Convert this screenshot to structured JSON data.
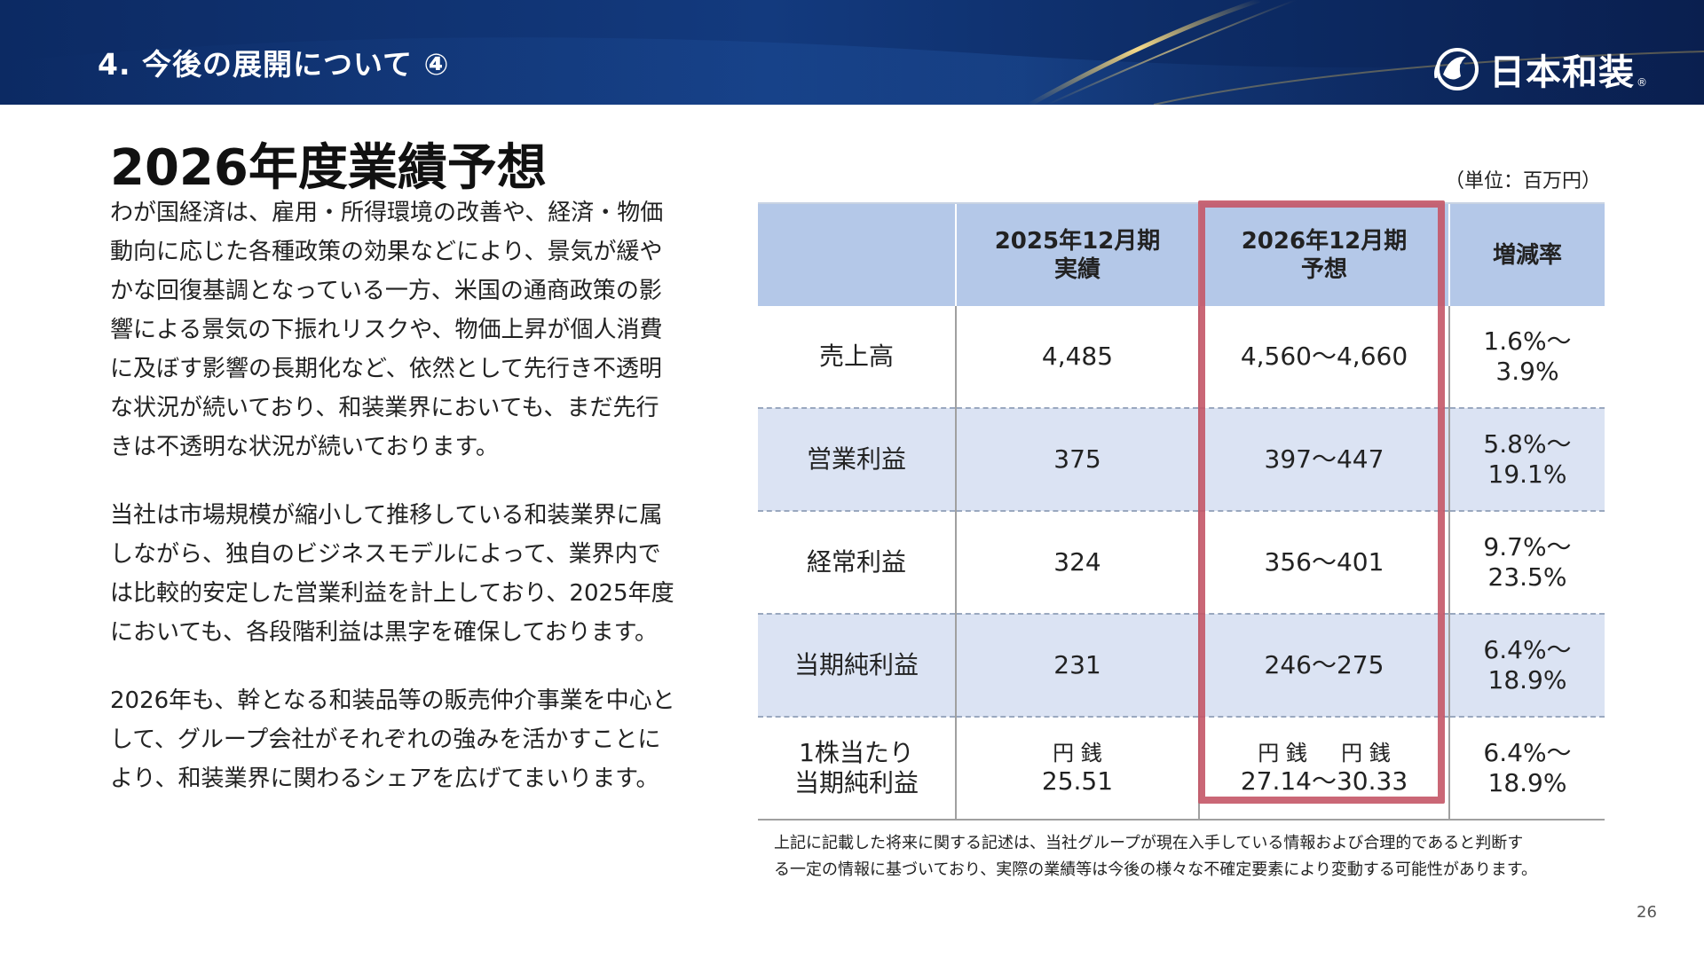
{
  "header": {
    "section_title": "4. 今後の展開について ④",
    "logo_text": "日本和装",
    "logo_reg": "®"
  },
  "main": {
    "heading": "2026年度業績予想",
    "paragraphs": [
      "わが国経済は、雇用・所得環境の改善や、経済・物価動向に応じた各種政策の効果などにより、景気が緩やかな回復基調となっている一方、米国の通商政策の影響による景気の下振れリスクや、物価上昇が個人消費に及ぼす影響の長期化など、依然として先行き不透明な状況が続いており、和装業界においても、まだ先行きは不透明な状況が続いております。",
      "当社は市場規模が縮小して推移している和装業界に属しながら、独自のビジネスモデルによって、業界内では比較的安定した営業利益を計上しており、2025年度においても、各段階利益は黒字を確保しております。",
      "2026年も、幹となる和装品等の販売仲介事業を中心として、グループ会社がそれぞれの強みを活かすことにより、和装業界に関わるシェアを広げてまいります。"
    ]
  },
  "table": {
    "unit": "（単位：百万円）",
    "headers": [
      "",
      "2025年12月期\n実績",
      "2026年12月期\n予想",
      "増減率"
    ],
    "rows": [
      {
        "label": "売上高",
        "actual": "4,485",
        "forecast": "4,560〜4,660",
        "rate": "1.6%〜\n3.9%"
      },
      {
        "label": "営業利益",
        "actual": "375",
        "forecast": "397〜447",
        "rate": "5.8%〜\n19.1%"
      },
      {
        "label": "経常利益",
        "actual": "324",
        "forecast": "356〜401",
        "rate": "9.7%〜\n23.5%"
      },
      {
        "label": "当期純利益",
        "actual": "231",
        "forecast": "246〜275",
        "rate": "6.4%〜\n18.9%"
      },
      {
        "label": "1株当たり\n当期純利益",
        "actual_unit": "円 銭",
        "actual": "25.51",
        "forecast_unit": "円 銭     円 銭",
        "forecast": "27.14〜30.33",
        "rate": "6.4%〜\n18.9%"
      }
    ]
  },
  "footnote": {
    "line1": "上記に記載した将来に関する記述は、当社グループが現在入手している情報および合理的であると判断す",
    "line2": "る一定の情報に基づいており、実際の業績等は今後の様々な不確定要素により変動する可能性があります。"
  },
  "page_number": "26",
  "colors": {
    "banner": "#0c2a63",
    "table_header": "#b4c8e8",
    "shade_row": "#dbe3f3",
    "highlight": "#c45667",
    "gold_accent": "#e8c45a"
  }
}
